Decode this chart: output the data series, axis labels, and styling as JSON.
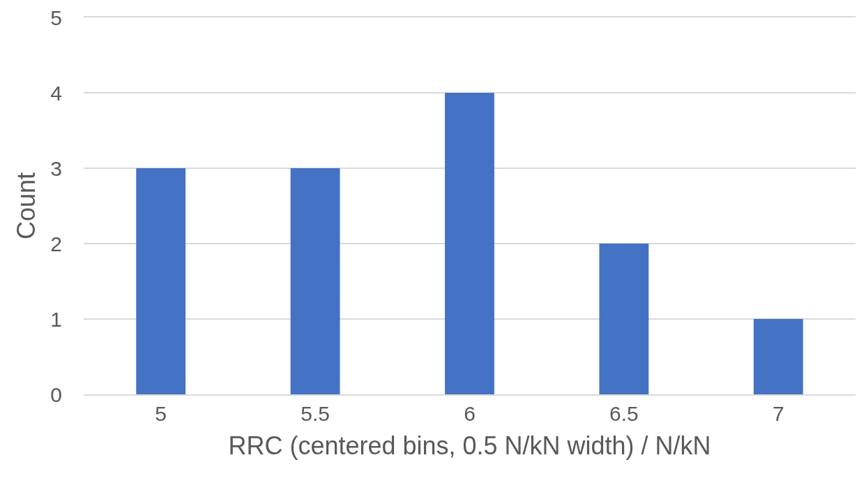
{
  "chart_data": {
    "type": "bar",
    "xlabel": "RRC (centered bins, 0.5 N/kN width) / N/kN",
    "ylabel": "Count",
    "categories": [
      "5",
      "5.5",
      "6",
      "6.5",
      "7"
    ],
    "values": [
      3,
      3,
      4,
      2,
      1
    ],
    "color": "#4472c4",
    "ylim": [
      0,
      5
    ],
    "yticks": [
      0,
      1,
      2,
      3,
      4,
      5
    ],
    "grid": "y"
  }
}
